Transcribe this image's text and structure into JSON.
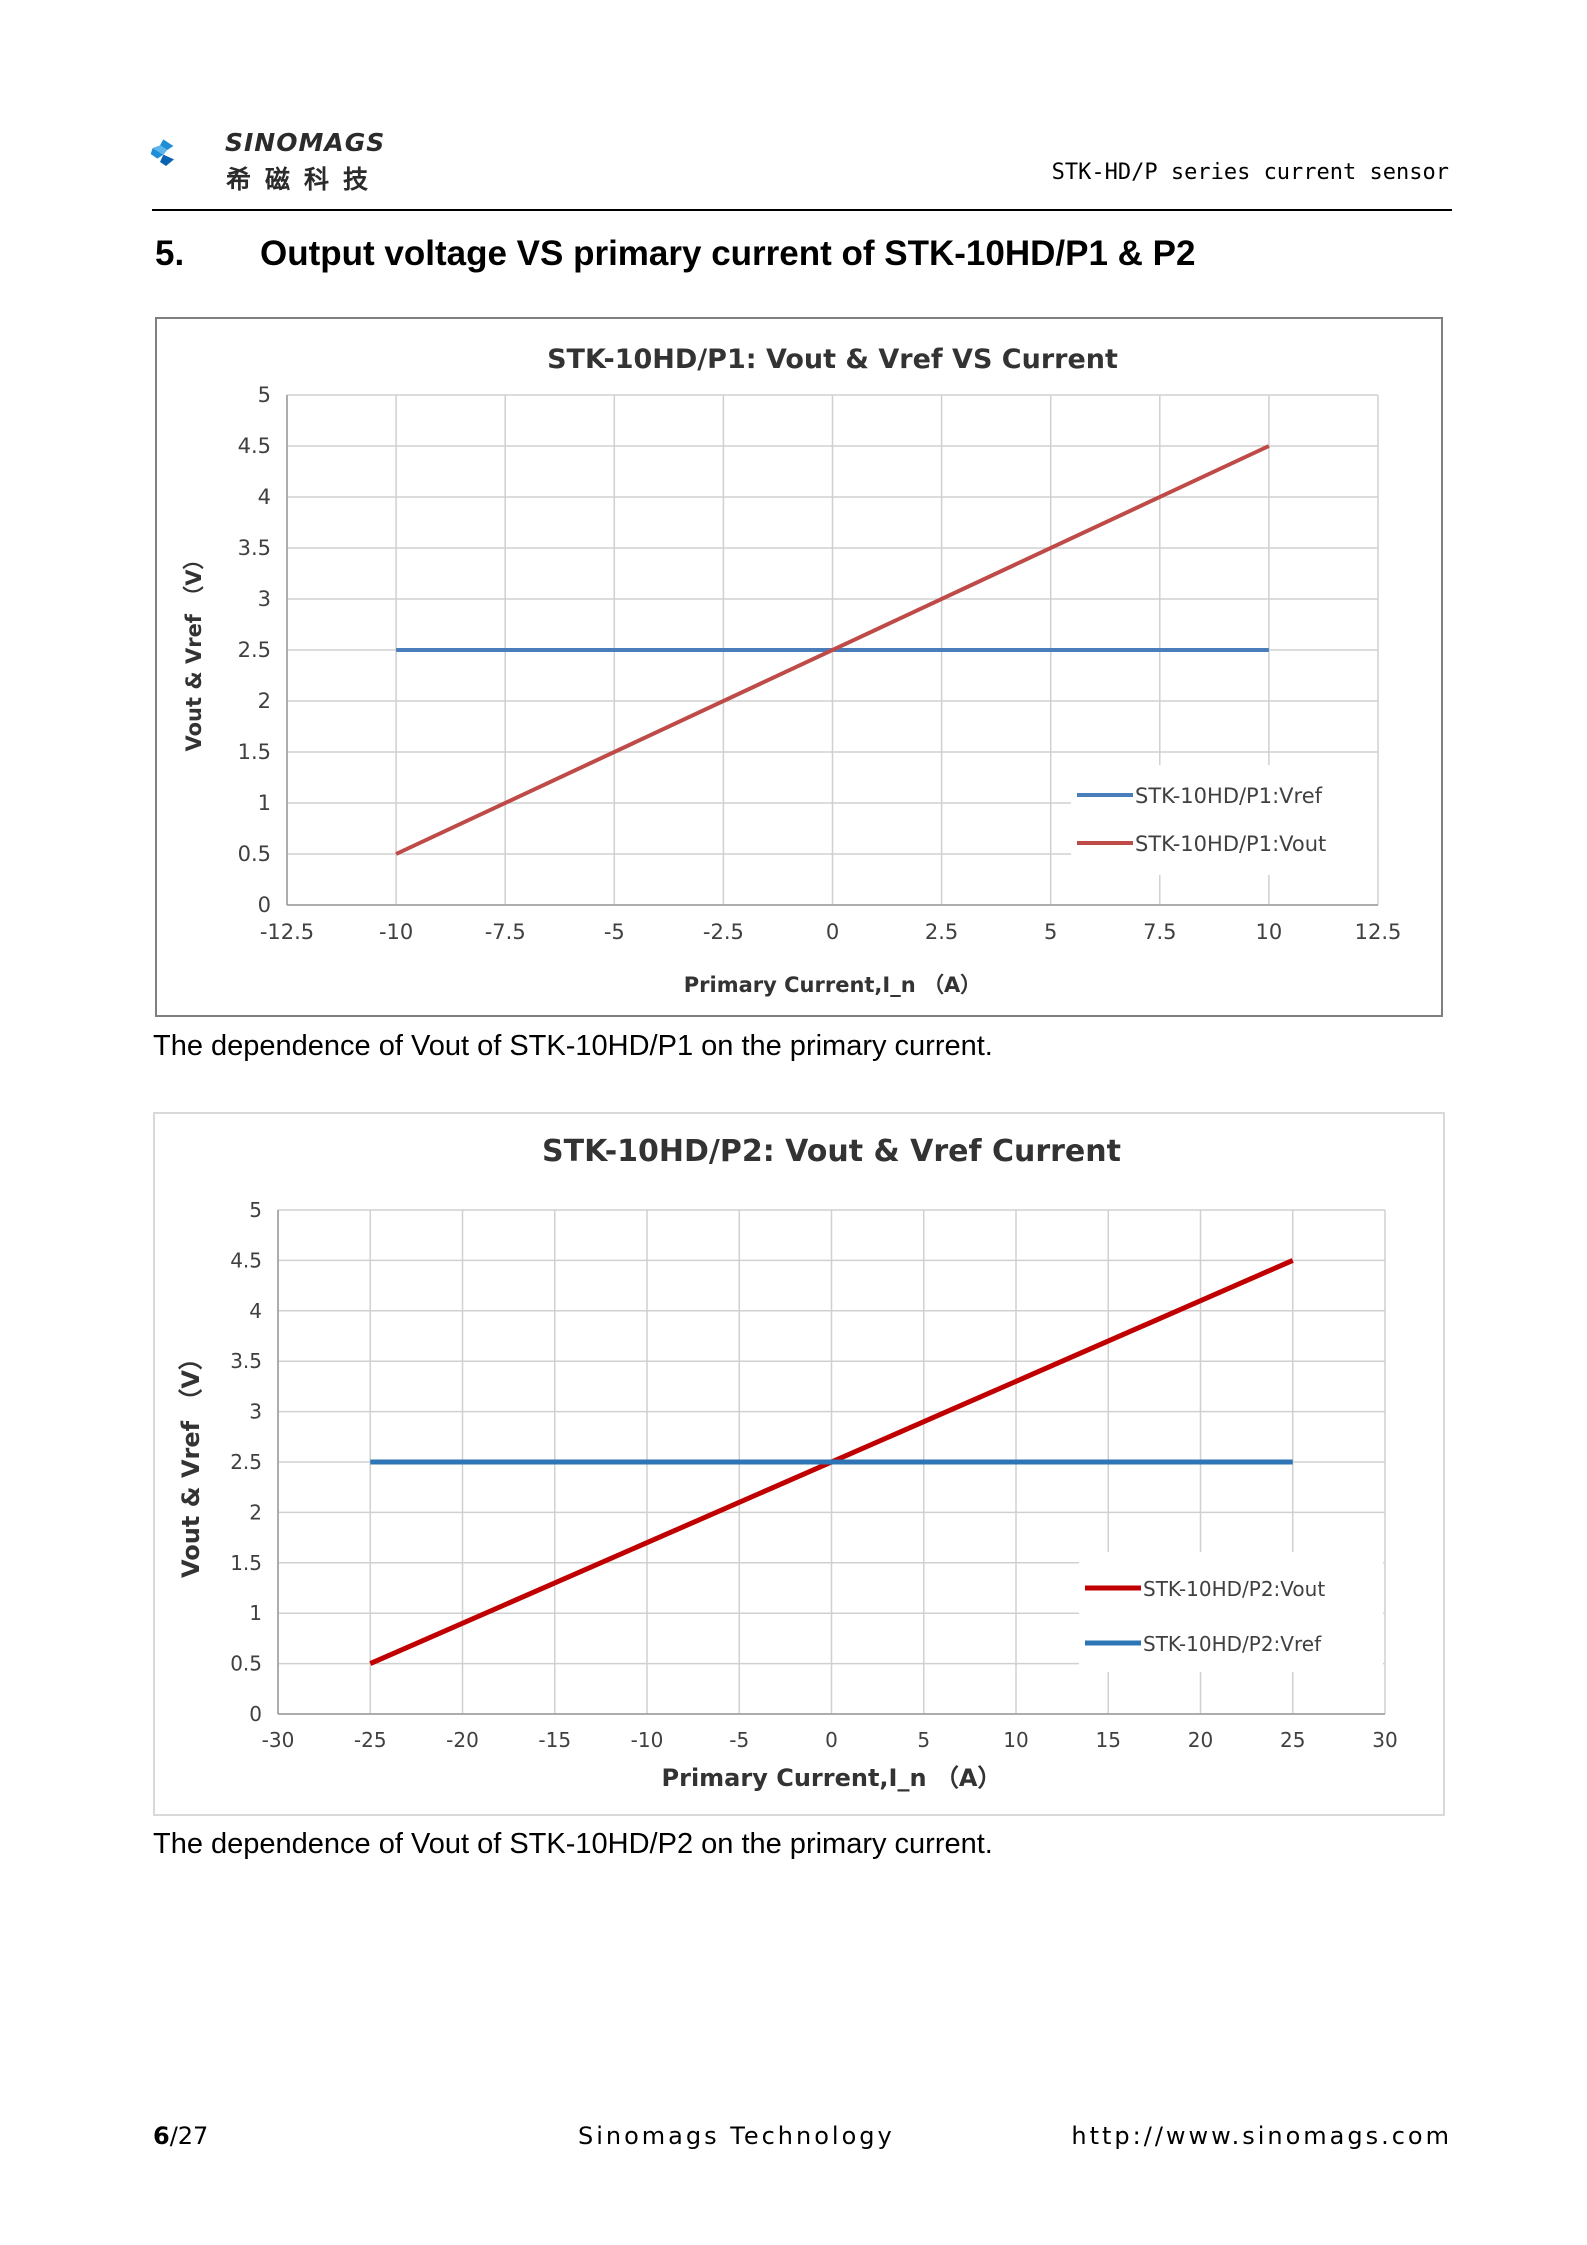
{
  "header": {
    "logo_name_en": "SINOMAGS",
    "logo_name_cn": "希磁科技",
    "doc_series": "STK-HD/P series current sensor",
    "logo_colors": [
      "#1e8fd6",
      "#0a62b3"
    ]
  },
  "section": {
    "number": "5.",
    "title": "Output voltage VS primary current of STK-10HD/P1 & P2"
  },
  "chart_data": [
    {
      "type": "line",
      "title": "STK-10HD/P1:  Vout & Vref VS Current",
      "xlabel": "Primary Current,I_n （A）",
      "ylabel": "Vout & Vref （V）",
      "xlim": [
        -12.5,
        12.5
      ],
      "ylim": [
        0,
        5
      ],
      "xticks": [
        "-12.5",
        "-10",
        "-7.5",
        "-5",
        "-2.5",
        "0",
        "2.5",
        "5",
        "7.5",
        "10",
        "12.5"
      ],
      "yticks": [
        "0",
        "0.5",
        "1",
        "1.5",
        "2",
        "2.5",
        "3",
        "3.5",
        "4",
        "4.5",
        "5"
      ],
      "grid": true,
      "legend_position": "bottom-right",
      "series": [
        {
          "name": "STK-10HD/P1:Vref",
          "x": [
            -10,
            10
          ],
          "y": [
            2.5,
            2.5
          ],
          "color": "#4a7ebb"
        },
        {
          "name": "STK-10HD/P1:Vout",
          "x": [
            -10,
            10
          ],
          "y": [
            0.5,
            4.5
          ],
          "color": "#be4b48"
        }
      ]
    },
    {
      "type": "line",
      "title": "STK-10HD/P2:  Vout & Vref Current",
      "xlabel": "Primary Current,I_n （A）",
      "ylabel": "Vout & Vref （V）",
      "xlim": [
        -30,
        30
      ],
      "ylim": [
        0,
        5
      ],
      "xticks": [
        "-30",
        "-25",
        "-20",
        "-15",
        "-10",
        "-5",
        "0",
        "5",
        "10",
        "15",
        "20",
        "25",
        "30"
      ],
      "yticks": [
        "0",
        "0.5",
        "1",
        "1.5",
        "2",
        "2.5",
        "3",
        "3.5",
        "4",
        "4.5",
        "5"
      ],
      "grid": true,
      "legend_position": "bottom-right",
      "series": [
        {
          "name": "STK-10HD/P2:Vout",
          "x": [
            -25,
            25
          ],
          "y": [
            0.5,
            4.5
          ],
          "color": "#c00000"
        },
        {
          "name": "STK-10HD/P2:Vref",
          "x": [
            -25,
            25
          ],
          "y": [
            2.5,
            2.5
          ],
          "color": "#2e75b6"
        }
      ]
    }
  ],
  "captions": [
    "The dependence of Vout of STK-10HD/P1 on the primary current.",
    "The dependence of Vout of STK-10HD/P2 on the primary current."
  ],
  "footer": {
    "page_current": "6",
    "page_total": "/27",
    "company": "Sinomags Technology",
    "url": "http://www.sinomags.com"
  }
}
